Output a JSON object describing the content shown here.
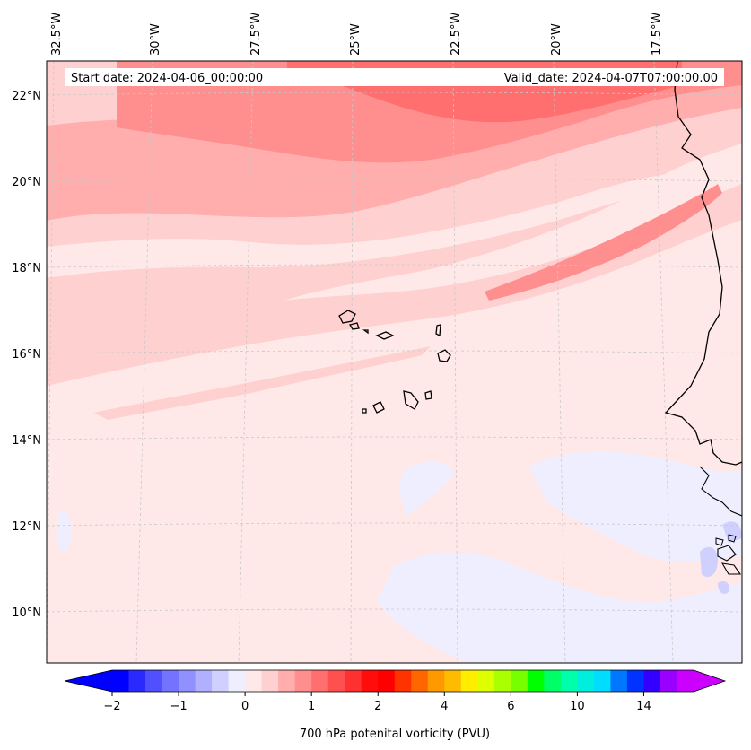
{
  "header": {
    "start_date": "Start date: 2024-04-06_00:00:00",
    "valid_date": "Valid_date: 2024-04-07T07:00:00.00"
  },
  "map": {
    "region": "Eastern tropical North Atlantic with Cape Verde islands and West African coast",
    "longitude_labels": [
      "32.5°W",
      "30°W",
      "27.5°W",
      "25°W",
      "22.5°W",
      "20°W",
      "17.5°W"
    ],
    "latitude_labels": [
      "22°N",
      "20°N",
      "18°N",
      "16°N",
      "14°N",
      "12°N",
      "10°N"
    ],
    "field": "700 hPa potential vorticity",
    "colors": {
      "background_field": "#ffe8e8",
      "band_light": "#ffd0d0",
      "band_mid": "#ffadad",
      "band_strong": "#ff8e8e",
      "band_peak": "#ff6f6f",
      "negative_light": "#eeeeff",
      "negative_mid": "#d0d0ff",
      "coastline": "#000000",
      "gridline": "#c8c8c8"
    }
  },
  "colorbar": {
    "label": "700 hPa potenital vorticity (PVU)",
    "tick_labels": [
      "−2",
      "−1",
      "0",
      "1",
      "2",
      "4",
      "6",
      "10",
      "14"
    ],
    "colors": [
      "#0000ff",
      "#2a2aff",
      "#5050ff",
      "#7373ff",
      "#9090ff",
      "#b0b0ff",
      "#d0d0ff",
      "#eeeeff",
      "#ffe8e8",
      "#ffd0d0",
      "#ffadad",
      "#ff8e8e",
      "#ff6f6f",
      "#ff5050",
      "#ff3030",
      "#ff0d0d",
      "#ff0000",
      "#ff3300",
      "#ff6600",
      "#ff9900",
      "#ffbb00",
      "#ffee00",
      "#ddff00",
      "#aaff00",
      "#77ff00",
      "#00ff00",
      "#00ff66",
      "#00ffaa",
      "#00eedd",
      "#00ddff",
      "#0077ff",
      "#0033ff",
      "#3300ff",
      "#9900ff",
      "#cc00ff"
    ],
    "extend_min_color": "#0000ff",
    "extend_max_color": "#cc00ff"
  }
}
